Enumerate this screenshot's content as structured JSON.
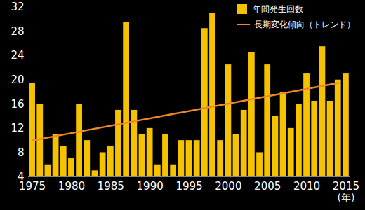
{
  "chart_data": {
    "type": "bar",
    "x": [
      1975,
      1976,
      1977,
      1978,
      1979,
      1980,
      1981,
      1982,
      1983,
      1984,
      1985,
      1986,
      1987,
      1988,
      1989,
      1990,
      1991,
      1992,
      1993,
      1994,
      1995,
      1996,
      1997,
      1998,
      1999,
      2000,
      2001,
      2002,
      2003,
      2004,
      2005,
      2006,
      2007,
      2008,
      2009,
      2010,
      2011,
      2012,
      2013,
      2014,
      2015
    ],
    "series": [
      {
        "name": "年間発生回数",
        "type": "bar",
        "color": "#f5c200",
        "values": [
          19.5,
          16,
          6,
          11,
          9,
          7,
          16,
          10,
          5,
          8,
          9,
          15,
          29.5,
          15,
          11,
          12,
          6,
          11,
          6,
          10,
          10,
          10,
          28.5,
          31,
          10,
          22.5,
          11,
          15,
          24.5,
          8,
          22.5,
          14,
          18,
          12,
          16,
          21,
          16.5,
          25.5,
          16.5,
          20,
          21
        ]
      },
      {
        "name": "長期変化傾向（トレンド）",
        "type": "line",
        "color": "#f0872a",
        "x": [
          1975,
          2014
        ],
        "values": [
          10,
          19.5
        ]
      }
    ],
    "xlabel": "(年)",
    "xlim": [
      1974.5,
      2015.5
    ],
    "xticks": [
      1975,
      1980,
      1985,
      1990,
      1995,
      2000,
      2005,
      2010,
      2015
    ],
    "ylim": [
      4,
      32
    ],
    "yticks": [
      4,
      8,
      12,
      16,
      20,
      24,
      28,
      32
    ],
    "grid": false,
    "legend": "upper right"
  }
}
